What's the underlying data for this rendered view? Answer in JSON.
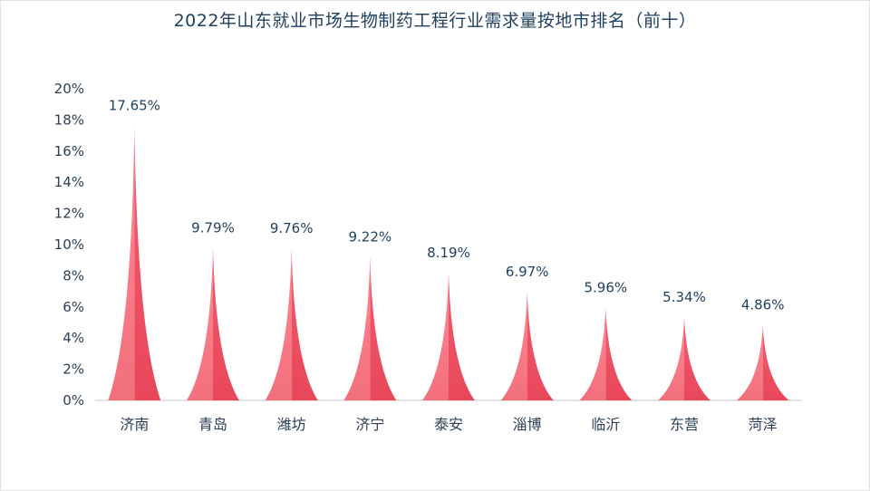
{
  "chart_data": {
    "type": "bar",
    "title": "2022年山东就业市场生物制药工程行业需求量按地市排名（前十）",
    "categories": [
      "济南",
      "青岛",
      "潍坊",
      "济宁",
      "泰安",
      "淄博",
      "临沂",
      "东营",
      "菏泽"
    ],
    "values": [
      17.65,
      9.79,
      9.76,
      9.22,
      8.19,
      6.97,
      5.96,
      5.34,
      4.86
    ],
    "data_labels": [
      "17.65%",
      "9.79%",
      "9.76%",
      "9.22%",
      "8.19%",
      "6.97%",
      "5.96%",
      "5.34%",
      "4.86%"
    ],
    "yticks": [
      "0%",
      "2%",
      "4%",
      "6%",
      "8%",
      "10%",
      "12%",
      "14%",
      "16%",
      "18%",
      "20%"
    ],
    "ylim": [
      0,
      20
    ],
    "xlabel": "",
    "ylabel": "",
    "grid": false,
    "colors": {
      "bar_light": "#f26f7c",
      "bar_dark": "#e8475a",
      "axis": "#c8c8c8",
      "text": "#1f3f5f"
    }
  }
}
